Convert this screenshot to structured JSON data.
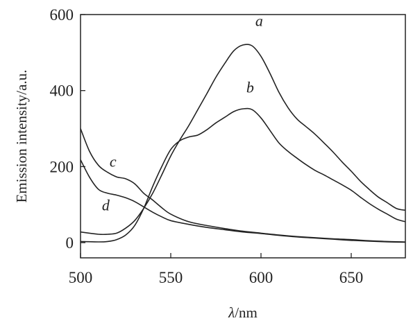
{
  "chart_data": {
    "type": "line",
    "title": "",
    "xlabel_symbol": "λ",
    "xlabel_unit": "/nm",
    "ylabel": "Emission intensity/a.u.",
    "xlim": [
      500,
      680
    ],
    "ylim": [
      -40,
      600
    ],
    "xticks": [
      500,
      550,
      600,
      650
    ],
    "yticks": [
      0,
      200,
      400,
      600
    ],
    "grid": false,
    "legend": "none (inline labels)",
    "line_color": "#222222",
    "series": [
      {
        "name": "a",
        "x": [
          500,
          510,
          515,
          520,
          525,
          530,
          535,
          540,
          545,
          550,
          555,
          560,
          565,
          570,
          575,
          580,
          585,
          590,
          595,
          600,
          605,
          610,
          615,
          620,
          625,
          630,
          635,
          640,
          645,
          650,
          655,
          660,
          665,
          670,
          675,
          680
        ],
        "y": [
          28,
          22,
          22,
          25,
          38,
          58,
          90,
          130,
          178,
          228,
          270,
          308,
          350,
          392,
          435,
          472,
          505,
          520,
          518,
          490,
          445,
          395,
          355,
          325,
          305,
          285,
          262,
          238,
          212,
          188,
          162,
          140,
          120,
          105,
          90,
          85
        ]
      },
      {
        "name": "b",
        "x": [
          500,
          510,
          515,
          520,
          525,
          530,
          535,
          540,
          545,
          550,
          555,
          560,
          565,
          570,
          575,
          580,
          585,
          590,
          595,
          600,
          605,
          610,
          615,
          620,
          625,
          630,
          635,
          640,
          645,
          650,
          655,
          660,
          665,
          670,
          675,
          680
        ],
        "y": [
          3,
          2,
          3,
          8,
          20,
          45,
          90,
          148,
          200,
          245,
          268,
          278,
          283,
          297,
          315,
          330,
          345,
          352,
          350,
          328,
          295,
          262,
          240,
          222,
          205,
          190,
          178,
          165,
          152,
          138,
          120,
          103,
          88,
          75,
          62,
          55
        ]
      },
      {
        "name": "c",
        "x": [
          500,
          505,
          510,
          515,
          520,
          525,
          530,
          535,
          540,
          545,
          550,
          560,
          570,
          580,
          590,
          600,
          610,
          620,
          630,
          640,
          650,
          660,
          670,
          680
        ],
        "y": [
          300,
          240,
          203,
          185,
          173,
          168,
          155,
          130,
          112,
          92,
          75,
          55,
          45,
          37,
          30,
          25,
          20,
          16,
          13,
          10,
          8,
          5,
          3,
          2
        ]
      },
      {
        "name": "d",
        "x": [
          500,
          505,
          510,
          515,
          520,
          525,
          530,
          535,
          540,
          545,
          550,
          560,
          570,
          580,
          590,
          600,
          610,
          620,
          630,
          640,
          650,
          660,
          670,
          680
        ],
        "y": [
          218,
          172,
          140,
          130,
          125,
          118,
          108,
          94,
          80,
          68,
          58,
          48,
          40,
          34,
          28,
          24,
          19,
          15,
          12,
          9,
          6,
          4,
          2,
          1
        ]
      }
    ],
    "annotations": [
      {
        "text": "a",
        "x": 599,
        "y": 570
      },
      {
        "text": "b",
        "x": 594,
        "y": 395
      },
      {
        "text": "c",
        "x": 518,
        "y": 200
      },
      {
        "text": "d",
        "x": 514,
        "y": 85
      }
    ]
  }
}
